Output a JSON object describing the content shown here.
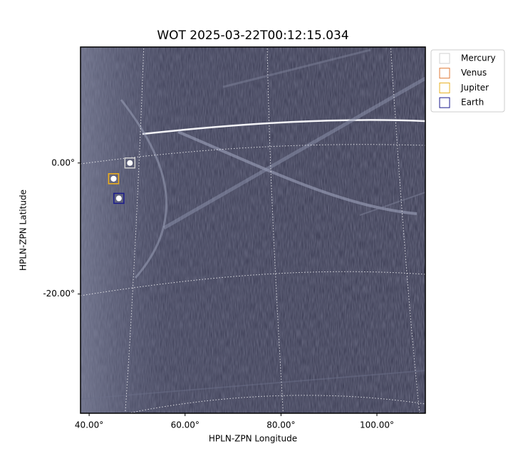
{
  "chart_data": {
    "type": "image",
    "title": "WOT 2025-03-22T00:12:15.034",
    "xlabel": "HPLN-ZPN Longitude",
    "ylabel": "HPLN-ZPN Latitude",
    "xlim": [
      38.2,
      110.1
    ],
    "ylim": [
      -38.2,
      17.7
    ],
    "xticks": [
      {
        "value": 40,
        "label": "40.00°"
      },
      {
        "value": 60,
        "label": "60.00°"
      },
      {
        "value": 80,
        "label": "80.00°"
      },
      {
        "value": 100,
        "label": "100.00°"
      }
    ],
    "yticks": [
      {
        "value": 0,
        "label": "0.00°"
      },
      {
        "value": -20,
        "label": "-20.00°"
      }
    ],
    "series": [
      {
        "name": "Mercury",
        "color": "#d0d0d0",
        "x": 48.5,
        "y": 0.0
      },
      {
        "name": "Venus",
        "color": "#e07b39",
        "x": 45.1,
        "y": -2.4
      },
      {
        "name": "Jupiter",
        "color": "#e8b020",
        "x": 45.1,
        "y": -2.4
      },
      {
        "name": "Earth",
        "color": "#1a1a8c",
        "x": 46.2,
        "y": -5.4
      }
    ]
  }
}
